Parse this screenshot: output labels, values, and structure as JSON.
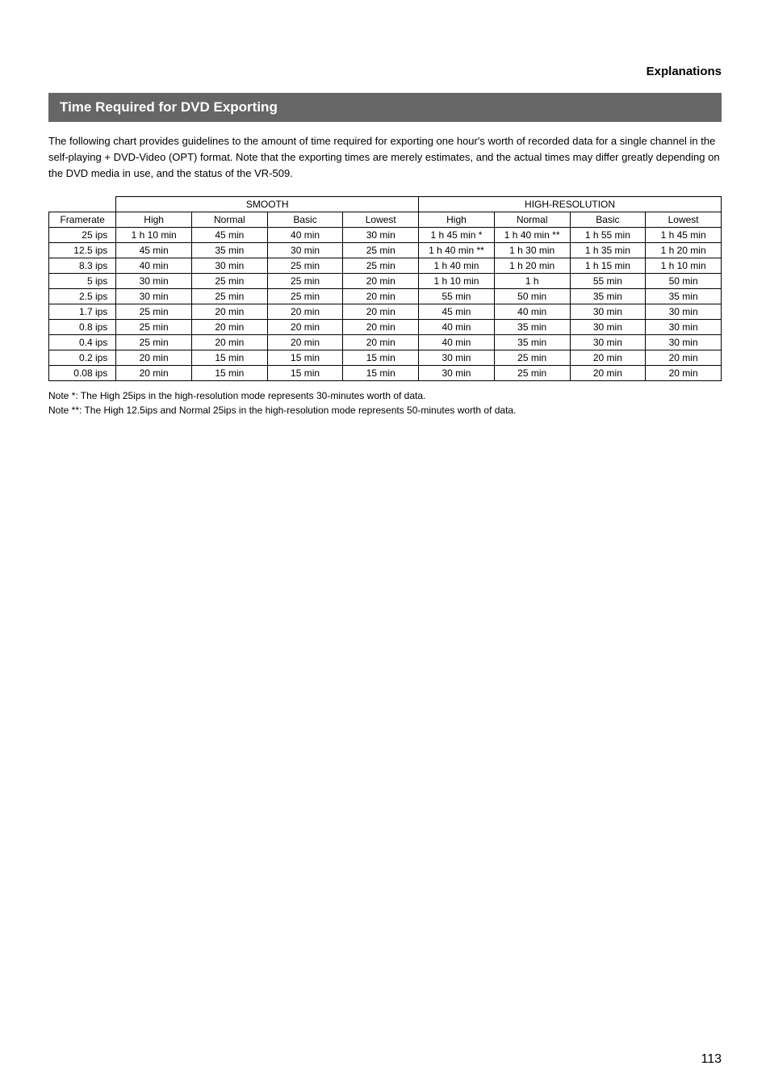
{
  "header": {
    "section": "Explanations"
  },
  "title": "Time Required for DVD Exporting",
  "intro": "The following chart provides guidelines to the amount of time required for exporting one hour's worth of recorded data for a single channel in the self-playing + DVD-Video (OPT) format. Note that the exporting times are merely estimates, and the actual times may differ greatly depending on the DVD media in use, and the status of the VR-509.",
  "table": {
    "groups": [
      "SMOOTH",
      "HIGH-RESOLUTION"
    ],
    "col_framerate": "Framerate",
    "subcols": [
      "High",
      "Normal",
      "Basic",
      "Lowest",
      "High",
      "Normal",
      "Basic",
      "Lowest"
    ],
    "rows": [
      {
        "fr": "25 ips",
        "c": [
          "1 h 10 min",
          "45 min",
          "40 min",
          "30 min",
          "1 h 45 min *",
          "1 h 40 min **",
          "1 h 55 min",
          "1 h 45 min"
        ]
      },
      {
        "fr": "12.5 ips",
        "c": [
          "45 min",
          "35 min",
          "30 min",
          "25 min",
          "1 h 40 min **",
          "1 h 30 min",
          "1 h 35 min",
          "1 h 20 min"
        ]
      },
      {
        "fr": "8.3 ips",
        "c": [
          "40 min",
          "30 min",
          "25 min",
          "25 min",
          "1 h 40 min",
          "1 h 20 min",
          "1 h 15 min",
          "1 h 10 min"
        ]
      },
      {
        "fr": "5 ips",
        "c": [
          "30 min",
          "25 min",
          "25 min",
          "20 min",
          "1 h 10 min",
          "1 h",
          "55 min",
          "50 min"
        ]
      },
      {
        "fr": "2.5 ips",
        "c": [
          "30 min",
          "25 min",
          "25 min",
          "20 min",
          "55 min",
          "50 min",
          "35 min",
          "35 min"
        ]
      },
      {
        "fr": "1.7 ips",
        "c": [
          "25 min",
          "20 min",
          "20 min",
          "20 min",
          "45 min",
          "40 min",
          "30 min",
          "30 min"
        ]
      },
      {
        "fr": "0.8 ips",
        "c": [
          "25 min",
          "20 min",
          "20 min",
          "20 min",
          "40 min",
          "35 min",
          "30 min",
          "30 min"
        ]
      },
      {
        "fr": "0.4 ips",
        "c": [
          "25 min",
          "20 min",
          "20 min",
          "20 min",
          "40 min",
          "35 min",
          "30 min",
          "30 min"
        ]
      },
      {
        "fr": "0.2 ips",
        "c": [
          "20 min",
          "15 min",
          "15 min",
          "15 min",
          "30 min",
          "25 min",
          "20 min",
          "20 min"
        ]
      },
      {
        "fr": "0.08 ips",
        "c": [
          "20 min",
          "15 min",
          "15 min",
          "15 min",
          "30 min",
          "25 min",
          "20 min",
          "20 min"
        ]
      }
    ]
  },
  "notes": {
    "n1": "Note *: The High 25ips in the high-resolution mode represents 30-minutes worth of data.",
    "n2": "Note **: The High 12.5ips and Normal 25ips in the high-resolution mode represents 50-minutes worth of data."
  },
  "page_number": "113",
  "style": {
    "page_bg": "#ffffff",
    "titlebar_bg": "#666666",
    "titlebar_fg": "#ffffff",
    "text_color": "#000000",
    "border_color": "#000000",
    "body_fontsize_pt": 10,
    "title_fontsize_pt": 13,
    "header_fontsize_pt": 11
  }
}
